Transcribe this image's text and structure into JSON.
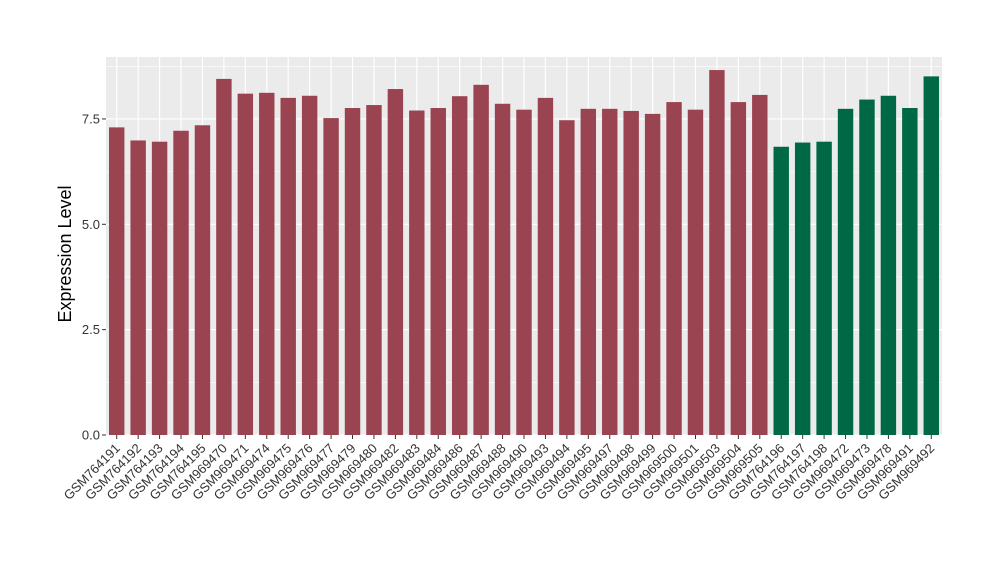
{
  "chart_data": {
    "type": "bar",
    "title": "",
    "xlabel": "",
    "ylabel": "Expression Level",
    "ylim": [
      0,
      8.97
    ],
    "yticks": [
      0.0,
      2.5,
      5.0,
      7.5
    ],
    "ytick_labels": [
      "0.0",
      "2.5",
      "5.0",
      "7.5"
    ],
    "grid": true,
    "legend": "none",
    "panel_background": "#EBEBEB",
    "grid_color": "#FFFFFF",
    "categories": [
      "GSM764191",
      "GSM764192",
      "GSM764193",
      "GSM764194",
      "GSM764195",
      "GSM969470",
      "GSM969471",
      "GSM969474",
      "GSM969475",
      "GSM969476",
      "GSM969477",
      "GSM969479",
      "GSM969480",
      "GSM969482",
      "GSM969483",
      "GSM969484",
      "GSM969486",
      "GSM969487",
      "GSM969488",
      "GSM969490",
      "GSM969493",
      "GSM969494",
      "GSM969495",
      "GSM969497",
      "GSM969498",
      "GSM969499",
      "GSM969500",
      "GSM969501",
      "GSM969503",
      "GSM969504",
      "GSM969505",
      "GSM764196",
      "GSM764197",
      "GSM764198",
      "GSM969472",
      "GSM969473",
      "GSM969478",
      "GSM969491",
      "GSM969492"
    ],
    "values": [
      7.3,
      6.99,
      6.96,
      7.22,
      7.35,
      8.45,
      8.1,
      8.12,
      8.0,
      8.05,
      7.52,
      7.76,
      7.83,
      8.21,
      7.7,
      7.76,
      8.04,
      8.31,
      7.86,
      7.72,
      8.0,
      7.47,
      7.74,
      7.74,
      7.69,
      7.62,
      7.9,
      7.72,
      8.66,
      7.9,
      8.07,
      6.84,
      6.94,
      6.96,
      7.74,
      7.96,
      8.05,
      7.76,
      8.51
    ],
    "colors": [
      "#9B4451",
      "#9B4451",
      "#9B4451",
      "#9B4451",
      "#9B4451",
      "#9B4451",
      "#9B4451",
      "#9B4451",
      "#9B4451",
      "#9B4451",
      "#9B4451",
      "#9B4451",
      "#9B4451",
      "#9B4451",
      "#9B4451",
      "#9B4451",
      "#9B4451",
      "#9B4451",
      "#9B4451",
      "#9B4451",
      "#9B4451",
      "#9B4451",
      "#9B4451",
      "#9B4451",
      "#9B4451",
      "#9B4451",
      "#9B4451",
      "#9B4451",
      "#9B4451",
      "#9B4451",
      "#9B4451",
      "#006845",
      "#006845",
      "#006845",
      "#006845",
      "#006845",
      "#006845",
      "#006845",
      "#006845"
    ]
  }
}
